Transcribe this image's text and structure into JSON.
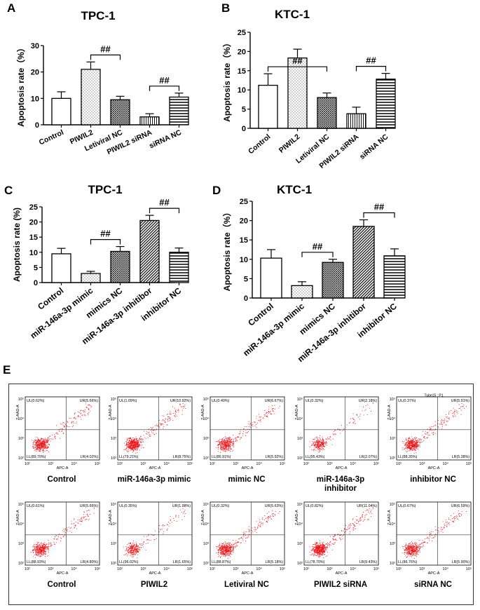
{
  "panel_labels": {
    "A": "A",
    "B": "B",
    "C": "C",
    "D": "D",
    "E": "E"
  },
  "chart_data": [
    {
      "id": "A",
      "type": "bar",
      "title": "TPC-1",
      "ylabel": "Apoptosis rate（%）",
      "ylim": [
        0,
        30
      ],
      "yticks": [
        0,
        10,
        20,
        30
      ],
      "categories": [
        "Control",
        "PIWIL2",
        "Letiviral NC",
        "PIWIL2 siRNA",
        "siRNA NC"
      ],
      "values": [
        10,
        21,
        9.5,
        3,
        10.5
      ],
      "errors": [
        2.5,
        2.8,
        1.3,
        1.2,
        1.5
      ],
      "patterns": [
        "none",
        "dots",
        "cross",
        "vlines",
        "hlines"
      ],
      "significance": [
        {
          "from": 1,
          "to": 2,
          "label": "##"
        },
        {
          "from": 3,
          "to": 4,
          "label": "##"
        }
      ]
    },
    {
      "id": "B",
      "type": "bar",
      "title": "KTC-1",
      "ylabel": "Apoptosis rate（%）",
      "ylim": [
        0,
        25
      ],
      "yticks": [
        0,
        5,
        10,
        15,
        20,
        25
      ],
      "categories": [
        "Control",
        "PIWIL2",
        "Letiviral NC",
        "PIWIL2 siRNA",
        "siRNA NC"
      ],
      "values": [
        11.2,
        18.3,
        8,
        3.8,
        12.8
      ],
      "errors": [
        3,
        2.3,
        1.2,
        1.7,
        1.5
      ],
      "patterns": [
        "none",
        "dots",
        "cross",
        "vlines",
        "hlines"
      ],
      "significance": [
        {
          "from": 0,
          "to": 2,
          "label": "##"
        },
        {
          "from": 3,
          "to": 4,
          "label": "##"
        }
      ]
    },
    {
      "id": "C",
      "type": "bar",
      "title": "TPC-1",
      "ylabel": "Apoptosis rate (%)",
      "ylim": [
        0,
        25
      ],
      "yticks": [
        0,
        5,
        10,
        15,
        20,
        25
      ],
      "categories": [
        "Control",
        "miR-146a-3p mimic",
        "mimics NC",
        "miR-146a-3p inhitibor",
        "inhibitor NC"
      ],
      "values": [
        9.5,
        3,
        10.3,
        20.5,
        10
      ],
      "errors": [
        1.8,
        0.7,
        1.6,
        1.7,
        1.4
      ],
      "patterns": [
        "none",
        "dots",
        "cross",
        "diag",
        "hlines"
      ],
      "significance": [
        {
          "from": 1,
          "to": 2,
          "label": "##"
        },
        {
          "from": 3,
          "to": 4,
          "label": "##"
        }
      ]
    },
    {
      "id": "D",
      "type": "bar",
      "title": "KTC-1",
      "ylabel": "Apoptosis rate（%）",
      "ylim": [
        0,
        25
      ],
      "yticks": [
        0,
        5,
        10,
        15,
        20,
        25
      ],
      "categories": [
        "Control",
        "miR-146a-3p mimic",
        "mimics NC",
        "miR-146a-3p inhitibor",
        "inhibitor NC"
      ],
      "values": [
        10.3,
        3.2,
        9.2,
        18.5,
        10.9
      ],
      "errors": [
        2.2,
        1,
        0.8,
        1.7,
        1.8
      ],
      "patterns": [
        "none",
        "dots",
        "cross",
        "diag",
        "hlines"
      ],
      "significance": [
        {
          "from": 1,
          "to": 2,
          "label": "##"
        },
        {
          "from": 3,
          "to": 4,
          "label": "##"
        }
      ]
    }
  ],
  "flow_axis": {
    "xlabel": "APC-A",
    "ylabel": "7-AAD-A",
    "ticks": [
      "10²",
      "10³",
      "10⁴",
      "10⁵"
    ]
  },
  "flow_plots": [
    {
      "caption": "Control",
      "UL": "UL(0.62%)",
      "UR": "UR(5.66%)",
      "LL": "LL(89.70%)",
      "LR": "LR(4.02%)",
      "density": 1.0
    },
    {
      "caption": "miR-146a-3p mimic",
      "UL": "UL(1.09%)",
      "UR": "UR(10.92%)",
      "LL": "LL(79.21%)",
      "LR": "LR(8.75%)",
      "density": 1.1
    },
    {
      "caption": "mimic NC",
      "UL": "UL(0.49%)",
      "UR": "UR(6.67%)",
      "LL": "LL(86.91%)",
      "LR": "LR(5.92%)",
      "density": 0.9
    },
    {
      "caption": "miR-146a-3p\ninhibitor",
      "UL": "UL(0.32%)",
      "UR": "UR(2.18%)",
      "LL": "LL(95.43%)",
      "LR": "LR(2.07%)",
      "density": 0.6
    },
    {
      "caption": "inhibitor NC",
      "UL": "UL(0.37%)",
      "UR": "UR(5.91%)",
      "LL": "LL(88.35%)",
      "LR": "LR(5.38%)",
      "density": 1.0,
      "header": "Tube15 : P1"
    },
    {
      "caption": "Control",
      "UL": "UL(0.61%)",
      "UR": "UR(5.66%)",
      "LL": "LL(88.93%)",
      "LR": "LR(4.80%)",
      "density": 0.9
    },
    {
      "caption": "PIWIL2",
      "UL": "UL(0.35%)",
      "UR": "UR(1.98%)",
      "LL": "LL(96.02%)",
      "LR": "LR(1.65%)",
      "density": 0.6
    },
    {
      "caption": "Letiviral NC",
      "UL": "UL(0.32%)",
      "UR": "UR(5.63%)",
      "LL": "LL(88.87%)",
      "LR": "LR(5.18%)",
      "density": 1.0
    },
    {
      "caption": "PIWIL2 siRNA",
      "UL": "UL(0.82%)",
      "UR": "UR(11.04%)",
      "LL": "LL(78.70%)",
      "LR": "LR(9.43%)",
      "density": 1.2
    },
    {
      "caption": "siRNA NC",
      "UL": "UL(0.67%)",
      "UR": "UR(6.59%)",
      "LL": "LL(86.76%)",
      "LR": "LR(5.90%)",
      "density": 0.9
    }
  ],
  "colors": {
    "bar_fill": "#ffffff",
    "stroke": "#000000",
    "pattern": "#111111",
    "dots": "#e8161b",
    "quad_line": "#3a3a3a"
  }
}
